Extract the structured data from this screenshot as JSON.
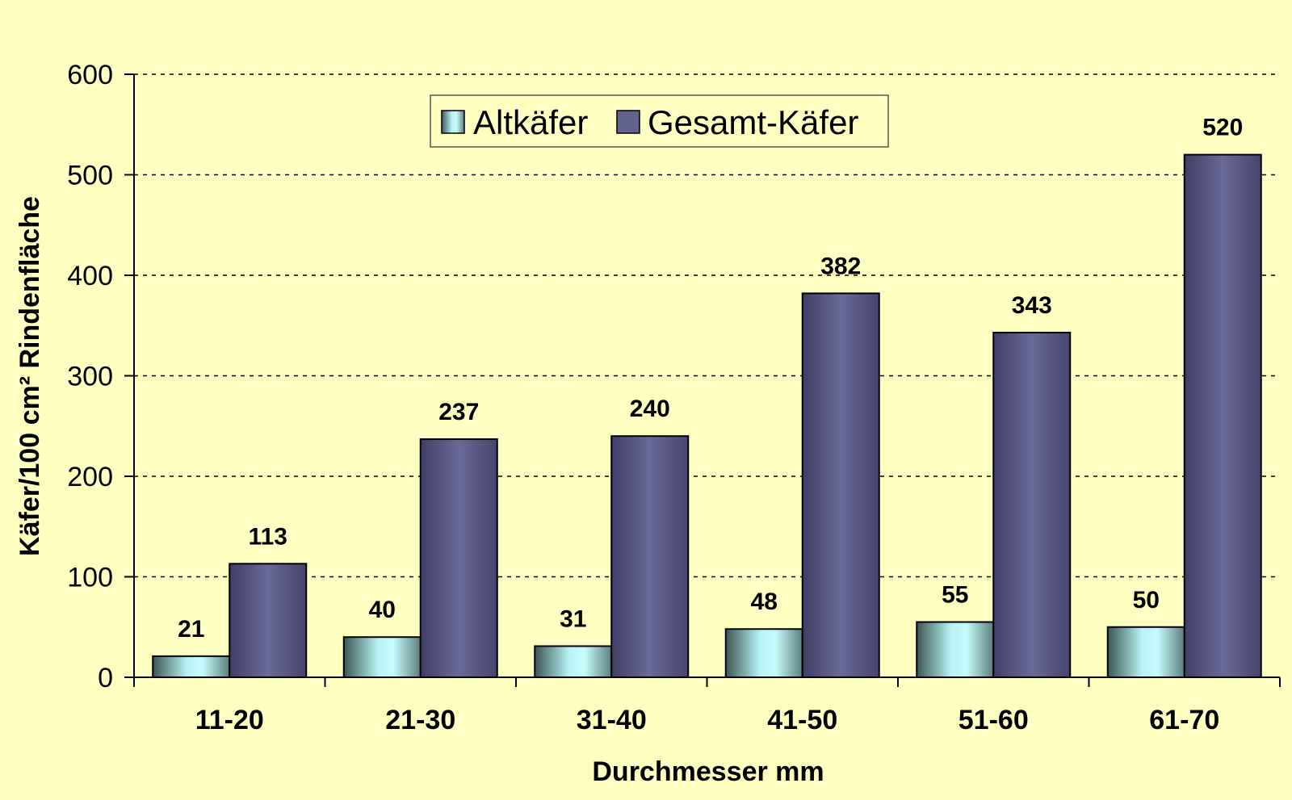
{
  "chart_data": {
    "type": "bar",
    "title": "",
    "xlabel": "Durchmesser mm",
    "ylabel": "Käfer/100 cm² Rindenfläche",
    "ylim": [
      0,
      600
    ],
    "yticks": [
      0,
      100,
      200,
      300,
      400,
      500,
      600
    ],
    "grid": true,
    "legend_position": "top-center",
    "categories": [
      "11-20",
      "21-30",
      "31-40",
      "41-50",
      "51-60",
      "61-70"
    ],
    "series": [
      {
        "name": "Altkäfer",
        "values": [
          21,
          40,
          31,
          48,
          55,
          50
        ],
        "color": "#aaf0f2"
      },
      {
        "name": "Gesamt-Käfer",
        "values": [
          113,
          237,
          240,
          382,
          343,
          520
        ],
        "color": "#63638f"
      }
    ]
  }
}
